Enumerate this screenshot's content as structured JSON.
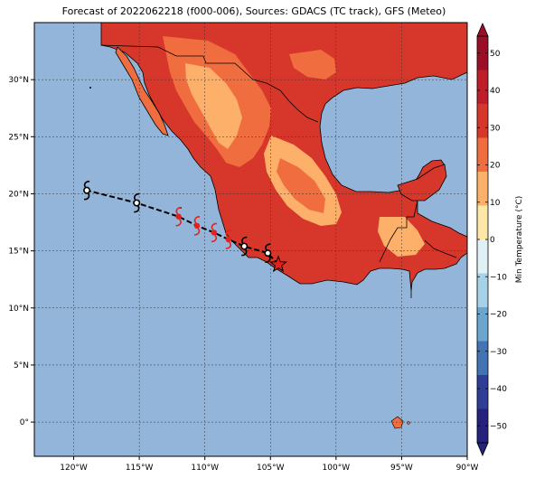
{
  "title": "Forecast of 2022062218 (f000-006), Sources: GDACS (TC track), GFS (Meteo)",
  "map": {
    "lon_range": [
      -123,
      -90
    ],
    "lat_range": [
      -3,
      35
    ],
    "x_ticks": [
      "120°W",
      "115°W",
      "110°W",
      "105°W",
      "100°W",
      "95°W",
      "90°W"
    ],
    "y_ticks": [
      "0°",
      "5°N",
      "10°N",
      "15°N",
      "20°N",
      "25°N",
      "30°N"
    ],
    "ocean_color": "#93b5d9",
    "gridlines": true
  },
  "colorbar": {
    "label": "Min Temperature (°C)",
    "ticks": [
      "50",
      "40",
      "30",
      "20",
      "10",
      "0",
      "−10",
      "−20",
      "−30",
      "−40",
      "−50"
    ],
    "colors_top_to_bottom": [
      "#9b0f26",
      "#be1e2a",
      "#d7372a",
      "#ef6d3f",
      "#fdb06a",
      "#fee7a6",
      "#e0f1f6",
      "#a6d1e6",
      "#6ca6cf",
      "#4373b3",
      "#2e3d96",
      "#24227c"
    ],
    "extend": "both"
  },
  "track": {
    "observed_center": {
      "lon": -104.4,
      "lat": 13.8,
      "marker": "star",
      "color": "#e8201c"
    },
    "forecast_points": [
      {
        "lon": -105.2,
        "lat": 14.8,
        "symbol": "tropical-storm",
        "color": "#000000"
      },
      {
        "lon": -107.0,
        "lat": 15.4,
        "symbol": "tropical-storm",
        "color": "#000000"
      },
      {
        "lon": -108.2,
        "lat": 16.0,
        "symbol": "hurricane",
        "color": "#e8201c"
      },
      {
        "lon": -109.3,
        "lat": 16.6,
        "symbol": "hurricane",
        "color": "#e8201c"
      },
      {
        "lon": -110.6,
        "lat": 17.2,
        "symbol": "hurricane",
        "color": "#e8201c"
      },
      {
        "lon": -112.0,
        "lat": 18.0,
        "symbol": "hurricane",
        "color": "#e8201c"
      },
      {
        "lon": -115.2,
        "lat": 19.2,
        "symbol": "tropical-storm",
        "color": "#000000"
      },
      {
        "lon": -119.0,
        "lat": 20.3,
        "symbol": "tropical-storm",
        "color": "#000000"
      }
    ]
  }
}
